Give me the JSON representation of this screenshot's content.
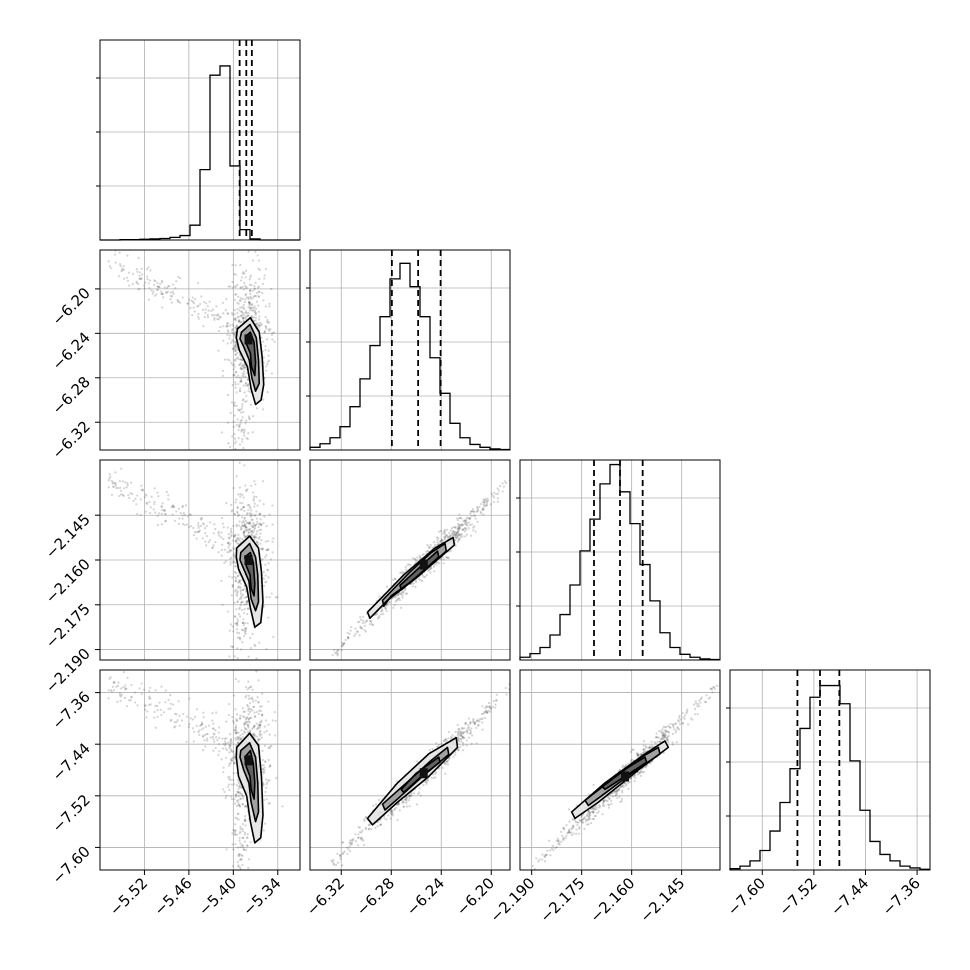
{
  "chart_data": {
    "type": "corner",
    "title": "",
    "grid": true,
    "columns": [
      {
        "range": [
          -5.58,
          -5.31
        ],
        "ticks": [
          -5.52,
          -5.46,
          -5.4,
          -5.34
        ],
        "tick_labels": [
          "−5.52",
          "−5.46",
          "−5.40",
          "−5.34"
        ]
      },
      {
        "range": [
          -6.345,
          -6.185
        ],
        "ticks": [
          -6.32,
          -6.28,
          -6.24,
          -6.2
        ],
        "tick_labels": [
          "−6.32",
          "−6.28",
          "−6.24",
          "−6.20"
        ]
      },
      {
        "range": [
          -2.1935,
          -2.1335
        ],
        "ticks": [
          -2.19,
          -2.175,
          -2.16,
          -2.145
        ],
        "tick_labels": [
          "−2.190",
          "−2.175",
          "−2.160",
          "−2.145"
        ]
      },
      {
        "range": [
          -7.65,
          -7.34
        ],
        "ticks": [
          -7.6,
          -7.52,
          -7.44,
          -7.36
        ],
        "tick_labels": [
          "−7.60",
          "−7.52",
          "−7.44",
          "−7.36"
        ]
      }
    ],
    "rows": [
      null,
      {
        "range": [
          -6.345,
          -6.165
        ],
        "ticks": [
          -6.32,
          -6.28,
          -6.24,
          -6.2
        ],
        "tick_labels": [
          "−6.32",
          "−6.28",
          "−6.24",
          "−6.20"
        ]
      },
      {
        "range": [
          -2.1935,
          -2.1265
        ],
        "ticks": [
          -2.19,
          -2.175,
          -2.16,
          -2.145
        ],
        "tick_labels": [
          "−2.190",
          "−2.175",
          "−2.160",
          "−2.145"
        ]
      },
      {
        "range": [
          -7.635,
          -7.325
        ],
        "ticks": [
          -7.6,
          -7.52,
          -7.44,
          -7.36
        ],
        "tick_labels": [
          "−7.60",
          "−7.52",
          "−7.44",
          "−7.36"
        ]
      }
    ],
    "histograms": [
      {
        "param": 0,
        "bin_edges": [
          -5.58,
          -5.5665,
          -5.553,
          -5.5395,
          -5.526,
          -5.5125,
          -5.499,
          -5.4855,
          -5.472,
          -5.4585,
          -5.445,
          -5.4315,
          -5.418,
          -5.4045,
          -5.391,
          -5.3775,
          -5.364,
          -5.3505,
          -5.337,
          -5.3235,
          -5.31
        ],
        "counts": [
          0,
          0,
          1,
          1,
          2,
          3,
          4,
          7,
          12,
          40,
          190,
          445,
          470,
          200,
          28,
          3,
          0,
          0,
          0,
          0
        ],
        "ymax": 540,
        "quantiles": [
          -5.3915,
          -5.3825,
          -5.375
        ]
      },
      {
        "param": 1,
        "bin_edges": [
          -6.345,
          -6.337,
          -6.329,
          -6.321,
          -6.313,
          -6.305,
          -6.297,
          -6.289,
          -6.281,
          -6.273,
          -6.265,
          -6.257,
          -6.249,
          -6.241,
          -6.233,
          -6.225,
          -6.217,
          -6.209,
          -6.201,
          -6.193,
          -6.185
        ],
        "counts": [
          12,
          28,
          55,
          105,
          195,
          320,
          470,
          600,
          770,
          840,
          735,
          600,
          415,
          255,
          120,
          55,
          25,
          12,
          5,
          2
        ],
        "ymax": 900,
        "quantiles": [
          -6.2795,
          -6.2585,
          -6.2405
        ]
      },
      {
        "param": 2,
        "bin_edges": [
          -2.1935,
          -2.1905,
          -2.1875,
          -2.1845,
          -2.1815,
          -2.1785,
          -2.1755,
          -2.1725,
          -2.1695,
          -2.1665,
          -2.1635,
          -2.1605,
          -2.1575,
          -2.1545,
          -2.1515,
          -2.1485,
          -2.1455,
          -2.1425,
          -2.1395,
          -2.1365,
          -2.1335
        ],
        "counts": [
          12,
          28,
          55,
          110,
          200,
          330,
          480,
          620,
          775,
          860,
          740,
          600,
          420,
          260,
          120,
          55,
          25,
          12,
          5,
          2
        ],
        "ymax": 880,
        "quantiles": [
          -2.1713,
          -2.1635,
          -2.1567
        ]
      },
      {
        "param": 3,
        "bin_edges": [
          -7.65,
          -7.6345,
          -7.619,
          -7.6035,
          -7.588,
          -7.5725,
          -7.557,
          -7.5415,
          -7.526,
          -7.5105,
          -7.495,
          -7.4795,
          -7.464,
          -7.4485,
          -7.433,
          -7.4175,
          -7.402,
          -7.3865,
          -7.371,
          -7.3555,
          -7.34
        ],
        "counts": [
          5,
          15,
          35,
          75,
          150,
          260,
          390,
          545,
          665,
          710,
          710,
          640,
          420,
          230,
          110,
          60,
          35,
          15,
          8,
          3
        ],
        "ymax": 770,
        "quantiles": [
          -7.5455,
          -7.5105,
          -7.4805
        ]
      }
    ],
    "scatter_panels": [
      {
        "x_param": 0,
        "y_param": 1,
        "peak": [
          -5.3795,
          -6.2455
        ],
        "contours": [
          [
            [
              -5.3945,
              -6.236
            ],
            [
              -5.377,
              -6.226
            ],
            [
              -5.365,
              -6.239
            ],
            [
              -5.361,
              -6.262
            ],
            [
              -5.359,
              -6.286
            ],
            [
              -5.3625,
              -6.3
            ],
            [
              -5.37,
              -6.304
            ],
            [
              -5.376,
              -6.29
            ],
            [
              -5.381,
              -6.27
            ],
            [
              -5.392,
              -6.255
            ],
            [
              -5.396,
              -6.244
            ]
          ],
          [
            [
              -5.389,
              -6.239
            ],
            [
              -5.3775,
              -6.232
            ],
            [
              -5.369,
              -6.244
            ],
            [
              -5.366,
              -6.264
            ],
            [
              -5.365,
              -6.285
            ],
            [
              -5.37,
              -6.292
            ],
            [
              -5.375,
              -6.28
            ],
            [
              -5.3785,
              -6.264
            ],
            [
              -5.386,
              -6.252
            ],
            [
              -5.391,
              -6.245
            ]
          ],
          [
            [
              -5.384,
              -6.243
            ],
            [
              -5.377,
              -6.239
            ],
            [
              -5.372,
              -6.248
            ],
            [
              -5.37,
              -6.266
            ],
            [
              -5.371,
              -6.278
            ],
            [
              -5.3755,
              -6.27
            ],
            [
              -5.377,
              -6.258
            ],
            [
              -5.382,
              -6.25
            ]
          ]
        ]
      },
      {
        "x_param": 0,
        "y_param": 2,
        "peak": [
          -5.3795,
          -2.16
        ],
        "contours": [
          [
            [
              -5.3955,
              -2.156
            ],
            [
              -5.378,
              -2.152
            ],
            [
              -5.366,
              -2.156
            ],
            [
              -5.362,
              -2.164
            ],
            [
              -5.36,
              -2.174
            ],
            [
              -5.363,
              -2.181
            ],
            [
              -5.371,
              -2.1825
            ],
            [
              -5.377,
              -2.176
            ],
            [
              -5.382,
              -2.169
            ],
            [
              -5.393,
              -2.163
            ],
            [
              -5.396,
              -2.159
            ]
          ],
          [
            [
              -5.39,
              -2.1575
            ],
            [
              -5.378,
              -2.1545
            ],
            [
              -5.37,
              -2.159
            ],
            [
              -5.367,
              -2.165
            ],
            [
              -5.366,
              -2.174
            ],
            [
              -5.37,
              -2.177
            ],
            [
              -5.376,
              -2.173
            ],
            [
              -5.379,
              -2.167
            ],
            [
              -5.386,
              -2.163
            ],
            [
              -5.391,
              -2.16
            ]
          ],
          [
            [
              -5.3845,
              -2.159
            ],
            [
              -5.377,
              -2.1575
            ],
            [
              -5.373,
              -2.161
            ],
            [
              -5.371,
              -2.168
            ],
            [
              -5.372,
              -2.172
            ],
            [
              -5.376,
              -2.1695
            ],
            [
              -5.3775,
              -2.165
            ],
            [
              -5.3825,
              -2.162
            ]
          ]
        ]
      },
      {
        "x_param": 1,
        "y_param": 2,
        "peak": [
          -6.254,
          -2.1615
        ],
        "contours": [
          [
            [
              -6.2305,
              -2.1525
            ],
            [
              -6.2295,
              -2.155
            ],
            [
              -6.26,
              -2.166
            ],
            [
              -6.283,
              -2.1735
            ],
            [
              -6.297,
              -2.1795
            ],
            [
              -6.299,
              -2.1775
            ],
            [
              -6.27,
              -2.165
            ],
            [
              -6.245,
              -2.156
            ]
          ],
          [
            [
              -6.237,
              -2.1545
            ],
            [
              -6.236,
              -2.157
            ],
            [
              -6.26,
              -2.166
            ],
            [
              -6.28,
              -2.172
            ],
            [
              -6.286,
              -2.1755
            ],
            [
              -6.287,
              -2.1735
            ],
            [
              -6.265,
              -2.164
            ],
            [
              -6.248,
              -2.1575
            ]
          ],
          [
            [
              -6.243,
              -2.157
            ],
            [
              -6.242,
              -2.159
            ],
            [
              -6.258,
              -2.165
            ],
            [
              -6.272,
              -2.17
            ],
            [
              -6.273,
              -2.1685
            ],
            [
              -6.26,
              -2.1635
            ]
          ]
        ]
      },
      {
        "x_param": 0,
        "y_param": 3,
        "peak": [
          -5.3795,
          -7.465
        ],
        "contours": [
          [
            [
              -5.3955,
              -7.445
            ],
            [
              -5.378,
              -7.423
            ],
            [
              -5.366,
              -7.442
            ],
            [
              -5.362,
              -7.49
            ],
            [
              -5.36,
              -7.55
            ],
            [
              -5.363,
              -7.585
            ],
            [
              -5.371,
              -7.593
            ],
            [
              -5.377,
              -7.56
            ],
            [
              -5.382,
              -7.52
            ],
            [
              -5.393,
              -7.49
            ],
            [
              -5.396,
              -7.46
            ]
          ],
          [
            [
              -5.39,
              -7.45
            ],
            [
              -5.378,
              -7.438
            ],
            [
              -5.37,
              -7.46
            ],
            [
              -5.367,
              -7.5
            ],
            [
              -5.366,
              -7.545
            ],
            [
              -5.37,
              -7.56
            ],
            [
              -5.376,
              -7.53
            ],
            [
              -5.379,
              -7.5
            ],
            [
              -5.386,
              -7.48
            ],
            [
              -5.391,
              -7.46
            ]
          ],
          [
            [
              -5.3845,
              -7.46
            ],
            [
              -5.377,
              -7.45
            ],
            [
              -5.373,
              -7.47
            ],
            [
              -5.371,
              -7.5
            ],
            [
              -5.372,
              -7.525
            ],
            [
              -5.376,
              -7.51
            ],
            [
              -5.3775,
              -7.49
            ],
            [
              -5.3825,
              -7.475
            ]
          ]
        ]
      },
      {
        "x_param": 1,
        "y_param": 3,
        "peak": [
          -6.254,
          -7.485
        ],
        "contours": [
          [
            [
              -6.228,
              -7.43
            ],
            [
              -6.227,
              -7.445
            ],
            [
              -6.25,
              -7.49
            ],
            [
              -6.275,
              -7.53
            ],
            [
              -6.295,
              -7.565
            ],
            [
              -6.299,
              -7.555
            ],
            [
              -6.275,
              -7.5
            ],
            [
              -6.25,
              -7.455
            ]
          ],
          [
            [
              -6.235,
              -7.445
            ],
            [
              -6.234,
              -7.456
            ],
            [
              -6.255,
              -7.49
            ],
            [
              -6.275,
              -7.525
            ],
            [
              -6.285,
              -7.542
            ],
            [
              -6.287,
              -7.533
            ],
            [
              -6.265,
              -7.495
            ],
            [
              -6.248,
              -7.465
            ]
          ],
          [
            [
              -6.242,
              -7.46
            ],
            [
              -6.241,
              -7.468
            ],
            [
              -6.256,
              -7.49
            ],
            [
              -6.27,
              -7.515
            ],
            [
              -6.272,
              -7.51
            ],
            [
              -6.26,
              -7.485
            ]
          ]
        ]
      },
      {
        "x_param": 2,
        "y_param": 3,
        "peak": [
          -2.162,
          -7.49
        ],
        "contours": [
          [
            [
              -2.15,
              -7.435
            ],
            [
              -2.149,
              -7.445
            ],
            [
              -2.158,
              -7.48
            ],
            [
              -2.17,
              -7.53
            ],
            [
              -2.177,
              -7.555
            ],
            [
              -2.178,
              -7.545
            ],
            [
              -2.168,
              -7.5
            ],
            [
              -2.156,
              -7.455
            ]
          ],
          [
            [
              -2.152,
              -7.445
            ],
            [
              -2.1515,
              -7.455
            ],
            [
              -2.16,
              -7.485
            ],
            [
              -2.169,
              -7.52
            ],
            [
              -2.173,
              -7.535
            ],
            [
              -2.174,
              -7.527
            ],
            [
              -2.166,
              -7.495
            ],
            [
              -2.157,
              -7.46
            ]
          ],
          [
            [
              -2.156,
              -7.46
            ],
            [
              -2.1555,
              -7.468
            ],
            [
              -2.162,
              -7.49
            ],
            [
              -2.168,
              -7.51
            ],
            [
              -2.169,
              -7.505
            ],
            [
              -2.164,
              -7.485
            ]
          ]
        ]
      }
    ]
  }
}
